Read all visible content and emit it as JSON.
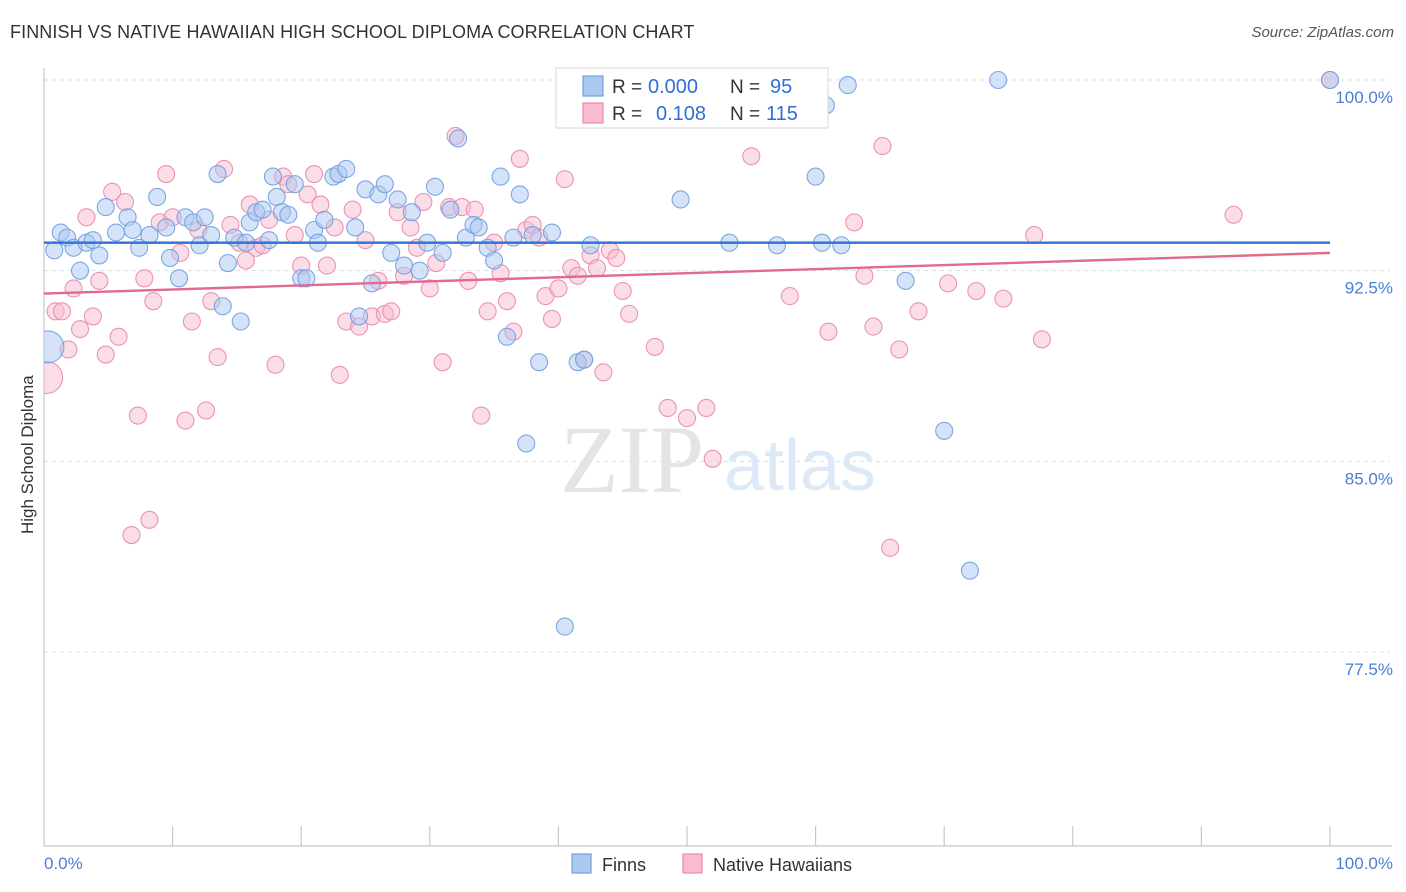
{
  "header": {
    "title": "FINNISH VS NATIVE HAWAIIAN HIGH SCHOOL DIPLOMA CORRELATION CHART",
    "source": "Source: ZipAtlas.com"
  },
  "watermark": {
    "zip": "ZIP",
    "atlas": "atlas"
  },
  "colors": {
    "finns_fill": "#aac8f0",
    "finns_stroke": "#6f9fe0",
    "finns_line": "#2f6fd6",
    "hawaiians_fill": "#f7bcd0",
    "hawaiians_stroke": "#e98aab",
    "hawaiians_line": "#e06a94",
    "axis_text": "#4a7fd4",
    "grid": "#d8dde6"
  },
  "legend": {
    "rows": [
      {
        "r_label": "R =",
        "r_value": "0.000",
        "n_label": "N =",
        "n_value": "95"
      },
      {
        "r_label": "R =",
        "r_value": "0.108",
        "n_label": "N =",
        "n_value": "115"
      }
    ]
  },
  "bottom_legend": {
    "finns": "Finns",
    "hawaiians": "Native Hawaiians"
  },
  "chart_data": {
    "type": "scatter",
    "title": "FINNISH VS NATIVE HAWAIIAN HIGH SCHOOL DIPLOMA CORRELATION CHART",
    "xlabel": "",
    "ylabel": "High School Diploma",
    "xlim": [
      0,
      100
    ],
    "ylim": [
      71.0,
      101.5
    ],
    "x_tick_labels": [
      "0.0%",
      "100.0%"
    ],
    "y_ticks": [
      77.5,
      85.0,
      92.5,
      100.0
    ],
    "y_tick_labels": [
      "77.5%",
      "85.0%",
      "92.5%",
      "100.0%"
    ],
    "grid": true,
    "legend_position": "top-center",
    "series": [
      {
        "name": "Finns",
        "r": 0.0,
        "n": 95,
        "trend": {
          "x": [
            0,
            100
          ],
          "y": [
            93.6,
            93.6
          ]
        },
        "points": [
          [
            0.3,
            89.5
          ],
          [
            0.8,
            93.3
          ],
          [
            1.3,
            94.0
          ],
          [
            1.8,
            93.8
          ],
          [
            2.3,
            93.4
          ],
          [
            2.8,
            92.5
          ],
          [
            3.3,
            93.6
          ],
          [
            3.8,
            93.7
          ],
          [
            4.3,
            93.1
          ],
          [
            4.8,
            95.0
          ],
          [
            5.6,
            94.0
          ],
          [
            6.5,
            94.6
          ],
          [
            6.9,
            94.1
          ],
          [
            7.4,
            93.4
          ],
          [
            8.2,
            93.9
          ],
          [
            8.8,
            95.4
          ],
          [
            9.5,
            94.2
          ],
          [
            9.8,
            93.0
          ],
          [
            10.5,
            92.2
          ],
          [
            11.0,
            94.6
          ],
          [
            11.6,
            94.4
          ],
          [
            12.1,
            93.5
          ],
          [
            12.5,
            94.6
          ],
          [
            13.0,
            93.9
          ],
          [
            13.5,
            96.3
          ],
          [
            13.9,
            91.1
          ],
          [
            14.3,
            92.8
          ],
          [
            14.8,
            93.8
          ],
          [
            15.3,
            90.5
          ],
          [
            15.7,
            93.6
          ],
          [
            16.0,
            94.4
          ],
          [
            16.5,
            94.8
          ],
          [
            17.0,
            94.9
          ],
          [
            17.5,
            93.7
          ],
          [
            17.8,
            96.2
          ],
          [
            18.1,
            95.4
          ],
          [
            18.5,
            94.8
          ],
          [
            19.0,
            94.7
          ],
          [
            19.5,
            95.9
          ],
          [
            20.0,
            92.2
          ],
          [
            20.4,
            92.2
          ],
          [
            21.0,
            94.1
          ],
          [
            21.3,
            93.6
          ],
          [
            21.8,
            94.5
          ],
          [
            22.5,
            96.2
          ],
          [
            22.9,
            96.3
          ],
          [
            23.5,
            96.5
          ],
          [
            24.2,
            94.2
          ],
          [
            24.5,
            90.7
          ],
          [
            25.0,
            95.7
          ],
          [
            25.5,
            92.0
          ],
          [
            26.0,
            95.5
          ],
          [
            26.5,
            95.9
          ],
          [
            27.0,
            93.2
          ],
          [
            27.5,
            95.3
          ],
          [
            28.0,
            92.7
          ],
          [
            28.6,
            94.8
          ],
          [
            29.2,
            92.5
          ],
          [
            29.8,
            93.6
          ],
          [
            30.4,
            95.8
          ],
          [
            31.0,
            93.2
          ],
          [
            31.6,
            94.9
          ],
          [
            32.2,
            97.7
          ],
          [
            32.8,
            93.8
          ],
          [
            33.4,
            94.3
          ],
          [
            33.8,
            94.2
          ],
          [
            34.5,
            93.4
          ],
          [
            35.0,
            92.9
          ],
          [
            35.5,
            96.2
          ],
          [
            36.0,
            89.9
          ],
          [
            36.5,
            93.8
          ],
          [
            37.0,
            95.5
          ],
          [
            37.5,
            85.7
          ],
          [
            38.0,
            93.9
          ],
          [
            38.5,
            88.9
          ],
          [
            39.5,
            94.0
          ],
          [
            40.5,
            78.5
          ],
          [
            41.5,
            88.9
          ],
          [
            42.0,
            89.0
          ],
          [
            42.5,
            93.5
          ],
          [
            44.0,
            98.6
          ],
          [
            49.5,
            95.3
          ],
          [
            53.3,
            93.6
          ],
          [
            57.0,
            93.5
          ],
          [
            57.8,
            100.0
          ],
          [
            60.0,
            96.2
          ],
          [
            60.5,
            93.6
          ],
          [
            60.8,
            99.0
          ],
          [
            62.0,
            93.5
          ],
          [
            62.5,
            99.8
          ],
          [
            67.0,
            92.1
          ],
          [
            70.0,
            86.2
          ],
          [
            72.0,
            80.7
          ],
          [
            74.2,
            100.0
          ],
          [
            100.0,
            100.0
          ]
        ]
      },
      {
        "name": "Native Hawaiians",
        "r": 0.108,
        "n": 115,
        "trend": {
          "x": [
            0,
            100
          ],
          "y": [
            91.6,
            93.2
          ]
        },
        "points": [
          [
            0.2,
            88.3
          ],
          [
            0.9,
            90.9
          ],
          [
            1.4,
            90.9
          ],
          [
            1.9,
            89.4
          ],
          [
            2.3,
            91.8
          ],
          [
            2.8,
            90.2
          ],
          [
            3.3,
            94.6
          ],
          [
            3.8,
            90.7
          ],
          [
            4.3,
            92.1
          ],
          [
            4.8,
            89.2
          ],
          [
            5.3,
            95.6
          ],
          [
            5.8,
            89.9
          ],
          [
            6.3,
            95.2
          ],
          [
            6.8,
            82.1
          ],
          [
            7.3,
            86.8
          ],
          [
            7.8,
            92.2
          ],
          [
            8.2,
            82.7
          ],
          [
            8.5,
            91.3
          ],
          [
            9.0,
            94.4
          ],
          [
            9.5,
            96.3
          ],
          [
            10.0,
            94.6
          ],
          [
            10.6,
            93.2
          ],
          [
            11.0,
            86.6
          ],
          [
            11.5,
            90.5
          ],
          [
            12.0,
            94.1
          ],
          [
            12.6,
            87.0
          ],
          [
            13.0,
            91.3
          ],
          [
            13.5,
            89.1
          ],
          [
            14.0,
            96.5
          ],
          [
            14.5,
            94.3
          ],
          [
            15.2,
            93.6
          ],
          [
            15.7,
            92.9
          ],
          [
            16.0,
            95.1
          ],
          [
            16.5,
            93.4
          ],
          [
            17.0,
            93.5
          ],
          [
            17.5,
            94.5
          ],
          [
            18.0,
            88.8
          ],
          [
            18.6,
            96.2
          ],
          [
            19.0,
            95.9
          ],
          [
            19.5,
            93.9
          ],
          [
            20.0,
            92.7
          ],
          [
            20.5,
            95.5
          ],
          [
            21.0,
            96.3
          ],
          [
            21.5,
            95.1
          ],
          [
            22.0,
            92.7
          ],
          [
            22.6,
            94.2
          ],
          [
            23.0,
            88.4
          ],
          [
            23.5,
            90.5
          ],
          [
            24.0,
            94.9
          ],
          [
            24.5,
            90.3
          ],
          [
            25.0,
            93.7
          ],
          [
            25.5,
            90.7
          ],
          [
            26.0,
            92.1
          ],
          [
            26.5,
            90.8
          ],
          [
            27.0,
            90.9
          ],
          [
            27.5,
            94.8
          ],
          [
            28.0,
            92.3
          ],
          [
            28.5,
            94.2
          ],
          [
            29.0,
            93.4
          ],
          [
            29.5,
            95.2
          ],
          [
            30.0,
            91.8
          ],
          [
            30.5,
            92.8
          ],
          [
            31.0,
            88.9
          ],
          [
            31.5,
            95.0
          ],
          [
            32.0,
            97.8
          ],
          [
            32.5,
            95.0
          ],
          [
            33.0,
            92.1
          ],
          [
            33.5,
            94.9
          ],
          [
            34.0,
            86.8
          ],
          [
            34.5,
            90.9
          ],
          [
            35.0,
            93.6
          ],
          [
            35.5,
            92.4
          ],
          [
            36.0,
            91.3
          ],
          [
            36.5,
            90.1
          ],
          [
            37.0,
            96.9
          ],
          [
            37.5,
            94.1
          ],
          [
            38.0,
            94.3
          ],
          [
            38.5,
            93.8
          ],
          [
            39.0,
            91.5
          ],
          [
            39.5,
            90.6
          ],
          [
            40.0,
            91.8
          ],
          [
            40.5,
            96.1
          ],
          [
            41.0,
            92.6
          ],
          [
            41.5,
            92.3
          ],
          [
            42.0,
            89.0
          ],
          [
            42.5,
            93.1
          ],
          [
            43.0,
            92.6
          ],
          [
            43.5,
            88.5
          ],
          [
            44.0,
            93.3
          ],
          [
            44.5,
            93.0
          ],
          [
            45.0,
            91.7
          ],
          [
            45.5,
            90.8
          ],
          [
            47.5,
            89.5
          ],
          [
            48.5,
            87.1
          ],
          [
            50.0,
            86.7
          ],
          [
            51.5,
            87.1
          ],
          [
            52.0,
            85.1
          ],
          [
            55.0,
            97.0
          ],
          [
            58.0,
            91.5
          ],
          [
            60.0,
            98.8
          ],
          [
            61.0,
            90.1
          ],
          [
            63.0,
            94.4
          ],
          [
            63.8,
            92.3
          ],
          [
            64.5,
            90.3
          ],
          [
            65.2,
            97.4
          ],
          [
            65.8,
            81.6
          ],
          [
            66.5,
            89.4
          ],
          [
            68.0,
            90.9
          ],
          [
            70.3,
            92.0
          ],
          [
            72.5,
            91.7
          ],
          [
            74.6,
            91.4
          ],
          [
            77.0,
            93.9
          ],
          [
            77.6,
            89.8
          ],
          [
            92.5,
            94.7
          ],
          [
            100.0,
            100.0
          ]
        ]
      }
    ]
  }
}
